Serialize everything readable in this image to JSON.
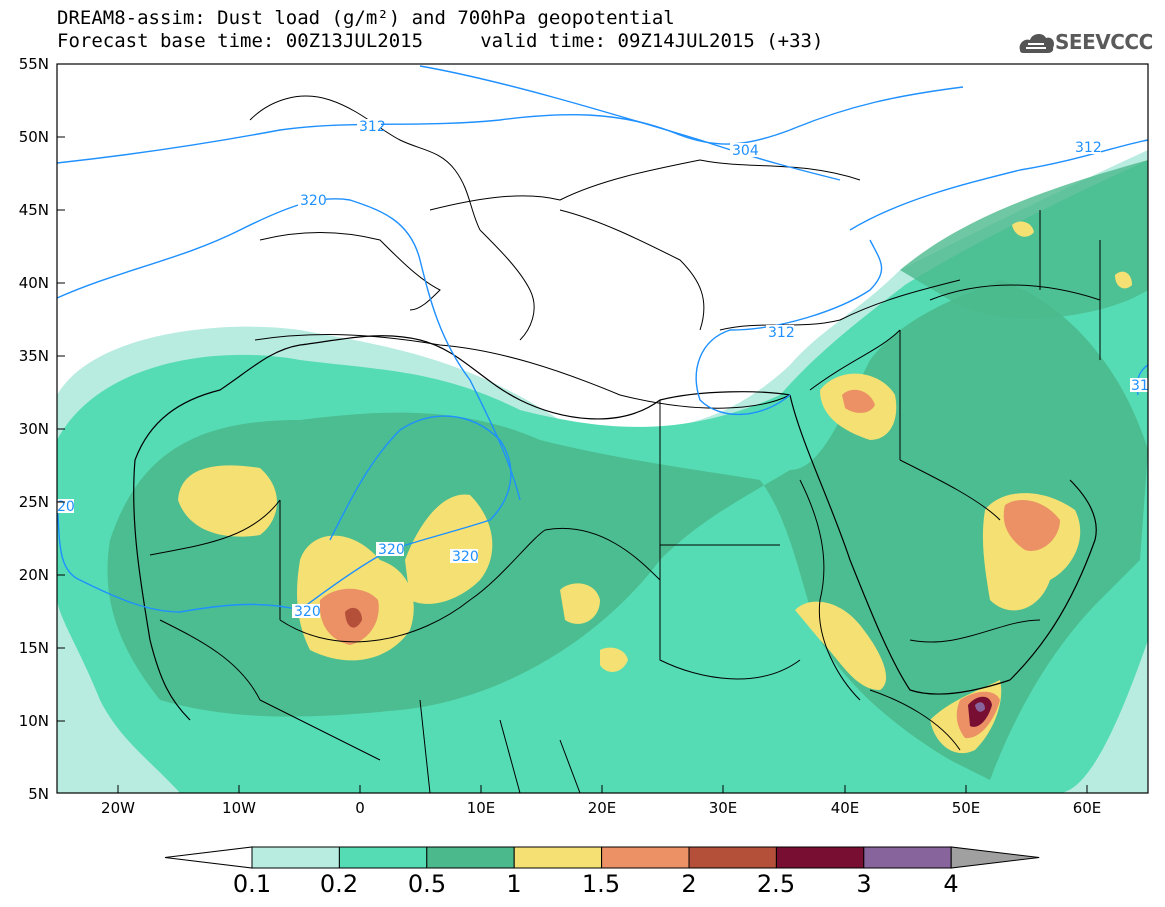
{
  "title": {
    "line1": "DREAM8-assim: Dust load (g/m²) and 700hPa geopotential",
    "line2": "Forecast base time: 00Z13JUL2015     valid time: 09Z14JUL2015 (+33)"
  },
  "logo": {
    "text": "SEEVCCC",
    "icon": "cloud-icon"
  },
  "map": {
    "lat_labels": [
      "55N",
      "50N",
      "45N",
      "40N",
      "35N",
      "30N",
      "25N",
      "20N",
      "15N",
      "10N",
      "5N"
    ],
    "lon_labels": [
      "20W",
      "10W",
      "0",
      "10E",
      "20E",
      "30E",
      "40E",
      "50E",
      "60E"
    ],
    "contour_labels": [
      "312",
      "304",
      "312",
      "320",
      "320",
      "320",
      "320",
      "312",
      "20",
      "31"
    ]
  },
  "colorbar": {
    "labels": [
      "0.1",
      "0.2",
      "0.5",
      "1",
      "1.5",
      "2",
      "2.5",
      "3",
      "4"
    ],
    "colors": [
      "#ffffff",
      "#b8ece0",
      "#55dcb4",
      "#4bb98c",
      "#f5e173",
      "#eb9165",
      "#b45039",
      "#780f32",
      "#87649b",
      "#a0a0a0"
    ]
  },
  "colors": {
    "contour": "#1e90ff",
    "border": "#000000"
  }
}
